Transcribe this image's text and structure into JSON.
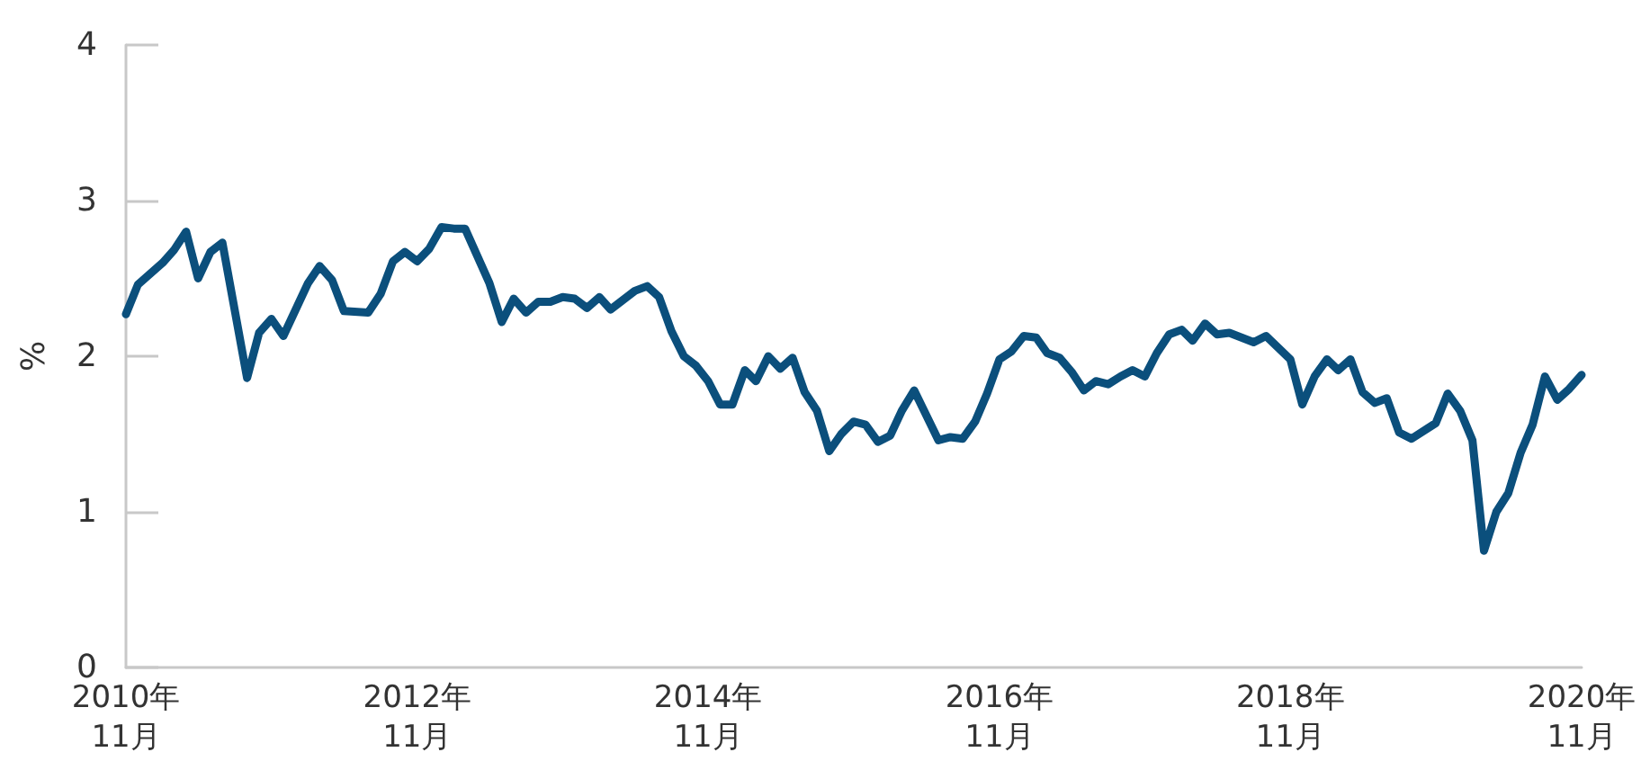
{
  "chart_data": {
    "type": "line",
    "ylabel": "%",
    "x": [
      "2010-11",
      "2010-12",
      "2011-02",
      "2011-03",
      "2011-04",
      "2011-05",
      "2011-06",
      "2011-07",
      "2011-09",
      "2011-10",
      "2011-11",
      "2011-12",
      "2012-02",
      "2012-03",
      "2012-04",
      "2012-05",
      "2012-07",
      "2012-08",
      "2012-09",
      "2012-10",
      "2012-11",
      "2012-12",
      "2013-01",
      "2013-02",
      "2013-03",
      "2013-05",
      "2013-06",
      "2013-07",
      "2013-08",
      "2013-09",
      "2013-10",
      "2013-11",
      "2013-12",
      "2014-01",
      "2014-02",
      "2014-03",
      "2014-05",
      "2014-06",
      "2014-07",
      "2014-08",
      "2014-09",
      "2014-10",
      "2014-11",
      "2014-12",
      "2015-01",
      "2015-02",
      "2015-03",
      "2015-04",
      "2015-05",
      "2015-06",
      "2015-07",
      "2015-08",
      "2015-09",
      "2015-10",
      "2015-11",
      "2015-12",
      "2016-01",
      "2016-02",
      "2016-03",
      "2016-04",
      "2016-06",
      "2016-07",
      "2016-08",
      "2016-09",
      "2016-10",
      "2016-11",
      "2016-12",
      "2017-01",
      "2017-02",
      "2017-03",
      "2017-04",
      "2017-05",
      "2017-06",
      "2017-07",
      "2017-08",
      "2017-09",
      "2017-10",
      "2017-11",
      "2017-12",
      "2018-01",
      "2018-02",
      "2018-03",
      "2018-04",
      "2018-05",
      "2018-06",
      "2018-08",
      "2018-09",
      "2018-11",
      "2018-12",
      "2019-01",
      "2019-02",
      "2019-03",
      "2019-04",
      "2019-05",
      "2019-06",
      "2019-07",
      "2019-08",
      "2019-09",
      "2019-11",
      "2019-12",
      "2020-01",
      "2020-02",
      "2020-03",
      "2020-04",
      "2020-05",
      "2020-06",
      "2020-07",
      "2020-08",
      "2020-09",
      "2020-10",
      "2020-11"
    ],
    "series": [
      {
        "color": "#0b4f7c",
        "values": [
          2.27,
          2.46,
          2.6,
          2.68,
          2.8,
          2.5,
          2.67,
          2.73,
          1.86,
          2.15,
          2.24,
          2.13,
          2.47,
          2.58,
          2.49,
          2.29,
          2.28,
          2.4,
          2.61,
          2.67,
          2.61,
          2.69,
          2.83,
          2.82,
          2.82,
          2.47,
          2.22,
          2.37,
          2.28,
          2.35,
          2.35,
          2.38,
          2.37,
          2.31,
          2.38,
          2.3,
          2.42,
          2.45,
          2.38,
          2.16,
          2.0,
          1.94,
          1.84,
          1.69,
          1.69,
          1.91,
          1.84,
          2.0,
          1.92,
          1.99,
          1.77,
          1.65,
          1.39,
          1.5,
          1.58,
          1.56,
          1.45,
          1.49,
          1.65,
          1.78,
          1.46,
          1.48,
          1.47,
          1.58,
          1.76,
          1.98,
          2.03,
          2.13,
          2.12,
          2.02,
          1.99,
          1.9,
          1.78,
          1.84,
          1.82,
          1.87,
          1.91,
          1.87,
          2.02,
          2.14,
          2.17,
          2.1,
          2.21,
          2.14,
          2.15,
          2.09,
          2.13,
          1.98,
          1.69,
          1.87,
          1.98,
          1.91,
          1.98,
          1.77,
          1.7,
          1.73,
          1.51,
          1.47,
          1.57,
          1.76,
          1.65,
          1.46,
          0.75,
          1.0,
          1.12,
          1.38,
          1.56,
          1.87,
          1.72,
          1.79,
          1.88
        ]
      }
    ],
    "xlim": [
      "2010-11",
      "2020-11"
    ],
    "xticks": [
      {
        "value": "2010-11",
        "label": "2010年\n11月"
      },
      {
        "value": "2012-11",
        "label": "2012年\n11月"
      },
      {
        "value": "2014-11",
        "label": "2014年\n11月"
      },
      {
        "value": "2016-11",
        "label": "2016年\n11月"
      },
      {
        "value": "2018-11",
        "label": "2018年\n11月"
      },
      {
        "value": "2020-11",
        "label": "2020年\n11月"
      }
    ],
    "ylim": [
      0,
      4
    ],
    "yticks": [
      0,
      1,
      2,
      3,
      4
    ],
    "grid": false,
    "marker": "none",
    "line_style": "solid"
  }
}
